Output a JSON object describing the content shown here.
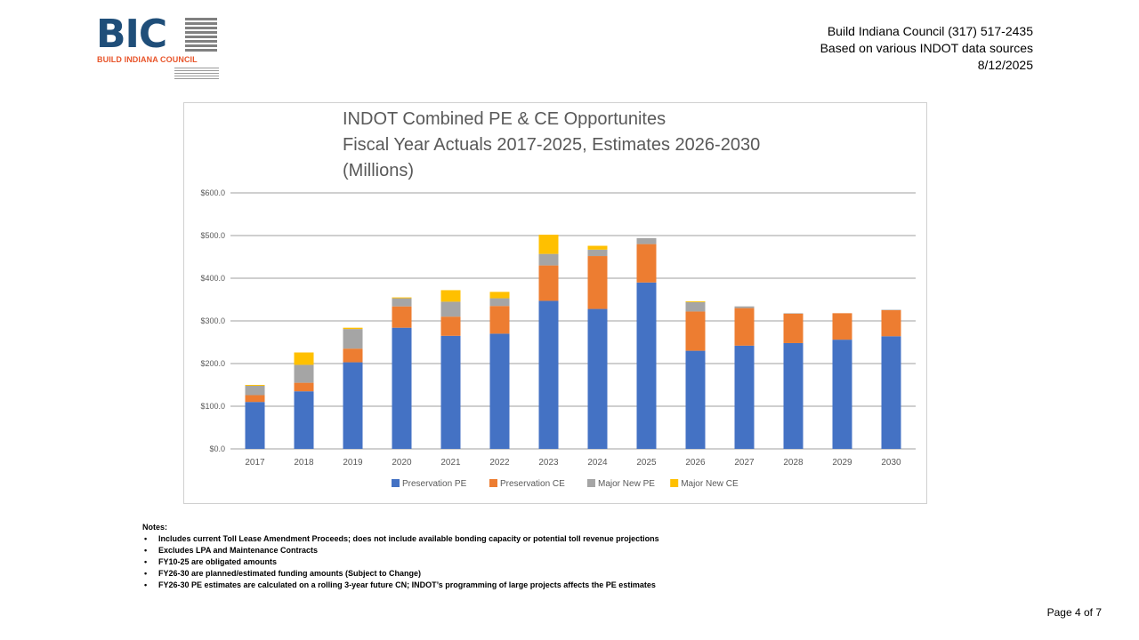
{
  "logo": {
    "abbr": "BIC",
    "name": "BUILD INDIANA COUNCIL"
  },
  "header": {
    "line1": "Build Indiana Council (317) 517-2435",
    "line2": "Based on various INDOT data sources",
    "line3": "8/12/2025"
  },
  "chart_data": {
    "type": "bar",
    "stacked": true,
    "title_lines": [
      "INDOT Combined PE & CE Opportunites",
      "Fiscal Year Actuals 2017-2025, Estimates 2026-2030",
      "(Millions)"
    ],
    "categories": [
      "2017",
      "2018",
      "2019",
      "2020",
      "2021",
      "2022",
      "2023",
      "2024",
      "2025",
      "2026",
      "2027",
      "2028",
      "2029",
      "2030"
    ],
    "series": [
      {
        "name": "Preservation PE",
        "color": "#4472c4",
        "values": [
          110,
          135,
          203,
          284,
          265,
          270,
          347,
          328,
          390,
          230,
          242,
          248,
          256,
          264
        ]
      },
      {
        "name": "Preservation CE",
        "color": "#ed7d31",
        "values": [
          16,
          20,
          32,
          50,
          45,
          65,
          83,
          124,
          90,
          92,
          88,
          69,
          62,
          61
        ]
      },
      {
        "name": "Major New PE",
        "color": "#a5a5a5",
        "values": [
          22,
          42,
          46,
          19,
          35,
          18,
          27,
          15,
          14,
          22,
          4,
          1,
          0,
          1
        ]
      },
      {
        "name": "Major New CE",
        "color": "#ffc000",
        "values": [
          2,
          29,
          3,
          2,
          27,
          15,
          45,
          9,
          0,
          2,
          0,
          0,
          0,
          0
        ]
      }
    ],
    "ylim": [
      0,
      600
    ],
    "yticks": [
      0,
      100,
      200,
      300,
      400,
      500,
      600
    ],
    "ytick_labels": [
      "$0.0",
      "$100.0",
      "$200.0",
      "$300.0",
      "$400.0",
      "$500.0",
      "$600.0"
    ],
    "grid": true,
    "legend_position": "bottom"
  },
  "notes": {
    "heading": "Notes:",
    "items": [
      "Includes current Toll Lease Amendment Proceeds; does not include available bonding capacity or potential toll revenue projections",
      "Excludes LPA and Maintenance Contracts",
      "FY10-25 are obligated amounts",
      "FY26-30 are planned/estimated funding amounts (Subject to Change)",
      "FY26-30 PE estimates are calculated on a rolling 3-year future CN;  INDOT’s programming of large projects affects the PE estimates"
    ]
  },
  "footer": {
    "page": "Page 4 of 7"
  }
}
